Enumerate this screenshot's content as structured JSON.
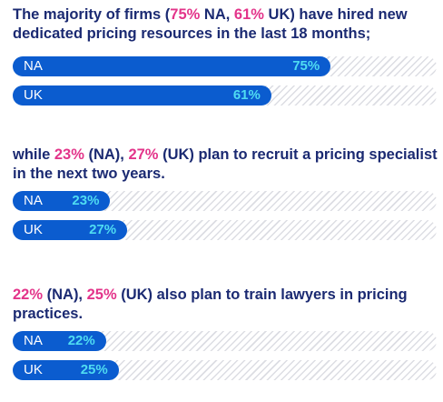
{
  "sections": [
    {
      "heading": {
        "pre": "The majority of firms (",
        "h1": "75%",
        "mid": " NA, ",
        "h2": "61%",
        "post": " UK) have hired new dedicated pricing resources in the last 18 months;"
      },
      "bars": [
        {
          "label": "NA",
          "value": 75,
          "text": "75%"
        },
        {
          "label": "UK",
          "value": 61,
          "text": "61%"
        }
      ]
    },
    {
      "heading": {
        "pre": "while ",
        "h1": "23%",
        "mid": " (NA), ",
        "h2": "27%",
        "post": " (UK) plan to recruit a pricing specialist in the next two years."
      },
      "bars": [
        {
          "label": "NA",
          "value": 23,
          "text": "23%"
        },
        {
          "label": "UK",
          "value": 27,
          "text": "27%"
        }
      ]
    },
    {
      "heading": {
        "pre": "",
        "h1": "22%",
        "mid": " (NA), ",
        "h2": "25%",
        "post": " (UK) also plan to train lawyers in pricing practices."
      },
      "bars": [
        {
          "label": "NA",
          "value": 22,
          "text": "22%"
        },
        {
          "label": "UK",
          "value": 25,
          "text": "25%"
        }
      ]
    }
  ],
  "colors": {
    "fill": "#0b5ccf",
    "value_text": "#4fdcf2",
    "heading": "#1b2a72",
    "highlight": "#e3348a"
  },
  "chart_data": [
    {
      "type": "bar",
      "categories": [
        "NA",
        "UK"
      ],
      "values": [
        75,
        61
      ],
      "xlim": [
        0,
        100
      ]
    },
    {
      "type": "bar",
      "categories": [
        "NA",
        "UK"
      ],
      "values": [
        23,
        27
      ],
      "xlim": [
        0,
        100
      ]
    },
    {
      "type": "bar",
      "categories": [
        "NA",
        "UK"
      ],
      "values": [
        22,
        25
      ],
      "xlim": [
        0,
        100
      ]
    }
  ]
}
